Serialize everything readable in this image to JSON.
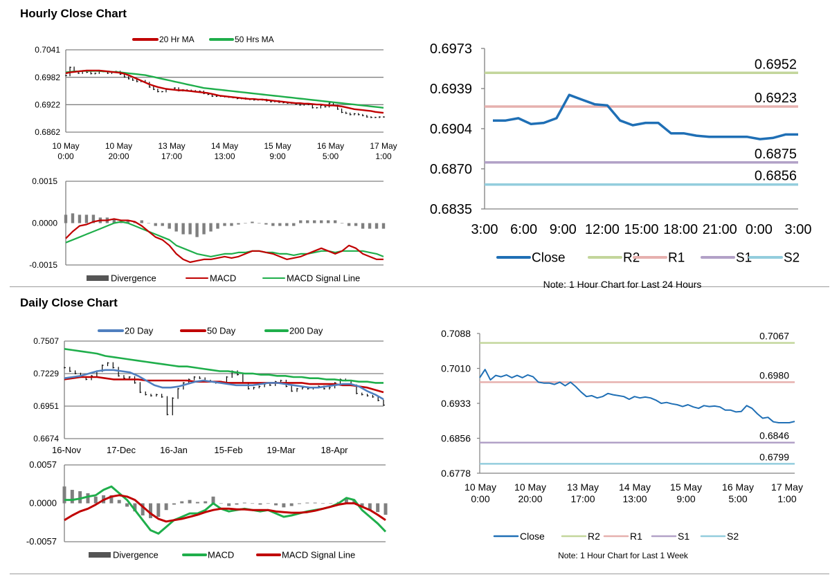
{
  "page": {
    "hourly_title": "Hourly Close Chart",
    "daily_title": "Daily Close Chart"
  },
  "colors": {
    "close": "#1f6fb5",
    "red": "#c00000",
    "green": "#1fae4b",
    "blue_ma": "#4f7fbf",
    "r2": "#c3d69b",
    "r1": "#e6b0ae",
    "s1": "#b2a1c7",
    "s2": "#93cddd",
    "bars": "#000000",
    "divergence": "#7f7f7f"
  },
  "chart_data": [
    {
      "id": "hourly_price",
      "type": "line",
      "legend": [
        "20 Hr MA",
        "50 Hrs MA"
      ],
      "yticks": [
        "0.7041",
        "0.6982",
        "0.6922",
        "0.6862"
      ],
      "ylim": [
        0.6862,
        0.7041
      ],
      "xticks": [
        [
          "10 May",
          "0:00"
        ],
        [
          "10 May",
          "20:00"
        ],
        [
          "13 May",
          "17:00"
        ],
        [
          "14 May",
          "13:00"
        ],
        [
          "15 May",
          "9:00"
        ],
        [
          "16 May",
          "5:00"
        ],
        [
          "17 May",
          "1:00"
        ]
      ],
      "close": [
        0.6985,
        0.7003,
        0.6993,
        0.699,
        0.6995,
        0.6992,
        0.6989,
        0.699,
        0.6994,
        0.6994,
        0.699,
        0.6992,
        0.6994,
        0.6988,
        0.6982,
        0.6978,
        0.6975,
        0.6972,
        0.6974,
        0.697,
        0.696,
        0.6955,
        0.695,
        0.695,
        0.6955,
        0.6955,
        0.6958,
        0.6952,
        0.6954,
        0.6953,
        0.6952,
        0.695,
        0.6951,
        0.6946,
        0.6944,
        0.694,
        0.694,
        0.694,
        0.6939,
        0.6938,
        0.6937,
        0.6935,
        0.6936,
        0.6934,
        0.6933,
        0.6932,
        0.6932,
        0.6933,
        0.693,
        0.6928,
        0.693,
        0.6927,
        0.6926,
        0.6925,
        0.6925,
        0.6923,
        0.6921,
        0.6923,
        0.6922,
        0.6915,
        0.6915,
        0.692,
        0.6917,
        0.6925,
        0.692,
        0.6912,
        0.6905,
        0.6903,
        0.69,
        0.6902,
        0.69,
        0.6898,
        0.6895,
        0.6894,
        0.6894,
        0.6895,
        0.6895
      ],
      "ma20": [
        0.699,
        0.6992,
        0.6993,
        0.6994,
        0.6995,
        0.6996,
        0.6996,
        0.6996,
        0.6996,
        0.6995,
        0.6994,
        0.6993,
        0.6992,
        0.6991,
        0.6989,
        0.6986,
        0.6982,
        0.6978,
        0.6974,
        0.697,
        0.6966,
        0.6963,
        0.696,
        0.6958,
        0.6956,
        0.6955,
        0.6954,
        0.6953,
        0.6953,
        0.6952,
        0.6951,
        0.695,
        0.6949,
        0.6948,
        0.6947,
        0.6945,
        0.6943,
        0.6941,
        0.694,
        0.6939,
        0.6938,
        0.6937,
        0.6936,
        0.6935,
        0.6934,
        0.6934,
        0.6933,
        0.6933,
        0.6932,
        0.6931,
        0.693,
        0.6929,
        0.6928,
        0.6927,
        0.6926,
        0.6925,
        0.6925,
        0.6924,
        0.6924,
        0.6923,
        0.6922,
        0.6922,
        0.6921,
        0.692,
        0.692,
        0.6919,
        0.6918,
        0.6916,
        0.6914,
        0.6912,
        0.6911,
        0.691,
        0.6909,
        0.6908,
        0.6906,
        0.6905,
        0.6904
      ],
      "ma50": [
        0.6992,
        0.6993,
        0.6994,
        0.6994,
        0.6995,
        0.6995,
        0.6995,
        0.6995,
        0.6995,
        0.6994,
        0.6994,
        0.6993,
        0.6993,
        0.6992,
        0.6991,
        0.699,
        0.6989,
        0.6988,
        0.6987,
        0.6986,
        0.6984,
        0.6982,
        0.698,
        0.6978,
        0.6976,
        0.6974,
        0.6972,
        0.697,
        0.6968,
        0.6966,
        0.6964,
        0.6962,
        0.696,
        0.6958,
        0.6957,
        0.6956,
        0.6955,
        0.6954,
        0.6953,
        0.6952,
        0.6951,
        0.695,
        0.6949,
        0.6948,
        0.6947,
        0.6946,
        0.6945,
        0.6944,
        0.6943,
        0.6942,
        0.6941,
        0.694,
        0.6939,
        0.6938,
        0.6937,
        0.6936,
        0.6935,
        0.6934,
        0.6933,
        0.6932,
        0.6931,
        0.693,
        0.6929,
        0.6928,
        0.6927,
        0.6926,
        0.6925,
        0.6924,
        0.6923,
        0.6922,
        0.6921,
        0.692,
        0.6919,
        0.6918,
        0.6917,
        0.6916,
        0.6915
      ]
    },
    {
      "id": "hourly_macd",
      "type": "line",
      "legend": [
        "Divergence",
        "MACD",
        "MACD Signal Line"
      ],
      "yticks": [
        "0.0015",
        "0.0000",
        "-0.0015"
      ],
      "ylim": [
        -0.0015,
        0.0015
      ],
      "macd": [
        -0.00055,
        -0.0003,
        -0.0001,
        -5e-05,
        5e-05,
        0.0001,
        0.0001,
        0.00015,
        0.0001,
        0.0001,
        5e-05,
        -0.0001,
        -0.0003,
        -0.0005,
        -0.0006,
        -0.0008,
        -0.0011,
        -0.0013,
        -0.0014,
        -0.00135,
        -0.0013,
        -0.0013,
        -0.00125,
        -0.0012,
        -0.00125,
        -0.0012,
        -0.0011,
        -0.001,
        -0.001,
        -0.00105,
        -0.0011,
        -0.0012,
        -0.0013,
        -0.00125,
        -0.0012,
        -0.0011,
        -0.001,
        -0.0009,
        -0.001,
        -0.0011,
        -0.001,
        -0.0008,
        -0.0009,
        -0.0011,
        -0.0012,
        -0.0013,
        -0.0013
      ],
      "signal": [
        -0.0007,
        -0.0006,
        -0.0005,
        -0.0004,
        -0.0003,
        -0.0002,
        -0.0001,
        0.0,
        5e-05,
        0.0,
        -0.0001,
        -0.0002,
        -0.0003,
        -0.0004,
        -0.0005,
        -0.0006,
        -0.0008,
        -0.0009,
        -0.001,
        -0.0011,
        -0.00115,
        -0.0012,
        -0.00115,
        -0.0011,
        -0.0011,
        -0.00105,
        -0.00105,
        -0.001,
        -0.001,
        -0.00105,
        -0.00105,
        -0.0011,
        -0.0011,
        -0.00115,
        -0.0011,
        -0.0011,
        -0.00105,
        -0.001,
        -0.001,
        -0.00105,
        -0.001,
        -0.001,
        -0.001,
        -0.001,
        -0.00105,
        -0.0011,
        -0.0012
      ],
      "divergence": [
        0.0003,
        0.00035,
        0.0003,
        0.0003,
        0.0003,
        0.0002,
        0.0002,
        0.00015,
        5e-05,
        0.0001,
        5e-05,
        0.0001,
        0.0,
        -0.0001,
        -0.0001,
        -0.0002,
        -0.0003,
        -0.0004,
        -0.0004,
        -0.0005,
        -0.0004,
        -0.0003,
        -0.0002,
        -0.0001,
        -0.0001,
        -5e-05,
        0.0,
        5e-05,
        0.0,
        -5e-05,
        -0.0001,
        -0.0001,
        -0.0001,
        -0.0001,
        0.0001,
        0.0001,
        0.0001,
        0.0001,
        0.0001,
        0.0001,
        0.0,
        -0.0001,
        -0.0001,
        -0.0002,
        -0.0002,
        -0.0002,
        -0.0002
      ]
    },
    {
      "id": "hourly_24h",
      "type": "line",
      "legend": [
        "Close",
        "R2",
        "R1",
        "S1",
        "S2"
      ],
      "yticks": [
        "0.6973",
        "0.6939",
        "0.6904",
        "0.6870",
        "0.6835"
      ],
      "ylim": [
        0.6835,
        0.6973
      ],
      "xticks": [
        "3:00",
        "6:00",
        "9:00",
        "12:00",
        "15:00",
        "18:00",
        "21:00",
        "0:00",
        "3:00"
      ],
      "close": [
        0.6911,
        0.6911,
        0.6913,
        0.6908,
        0.6909,
        0.6913,
        0.6933,
        0.6929,
        0.6925,
        0.6924,
        0.6911,
        0.6907,
        0.6909,
        0.6909,
        0.69,
        0.69,
        0.6898,
        0.6897,
        0.6897,
        0.6897,
        0.6897,
        0.6895,
        0.6896,
        0.6899,
        0.6899
      ],
      "levels": {
        "R2": "0.6952",
        "R1": "0.6923",
        "S1": "0.6875",
        "S2": "0.6856"
      },
      "note": "Note: 1 Hour Chart for Last 24 Hours"
    },
    {
      "id": "daily_price",
      "type": "line",
      "legend": [
        "20 Day",
        "50 Day",
        "200 Day"
      ],
      "yticks": [
        "0.7507",
        "0.7229",
        "0.6951",
        "0.6674"
      ],
      "ylim": [
        0.6674,
        0.7507
      ],
      "xticks": [
        "16-Nov",
        "17-Dec",
        "16-Jan",
        "15-Feb",
        "19-Mar",
        "18-Apr"
      ],
      "close": [
        0.728,
        0.725,
        0.723,
        0.72,
        0.718,
        0.721,
        0.725,
        0.73,
        0.732,
        0.728,
        0.721,
        0.719,
        0.72,
        0.715,
        0.707,
        0.705,
        0.704,
        0.705,
        0.703,
        0.688,
        0.702,
        0.71,
        0.715,
        0.718,
        0.72,
        0.719,
        0.717,
        0.716,
        0.715,
        0.716,
        0.72,
        0.725,
        0.722,
        0.715,
        0.71,
        0.711,
        0.712,
        0.714,
        0.713,
        0.716,
        0.717,
        0.712,
        0.708,
        0.71,
        0.711,
        0.71,
        0.711,
        0.712,
        0.71,
        0.711,
        0.715,
        0.718,
        0.717,
        0.713,
        0.706,
        0.705,
        0.704,
        0.703,
        0.7,
        0.696
      ],
      "ma20": [
        0.719,
        0.72,
        0.721,
        0.723,
        0.725,
        0.726,
        0.726,
        0.725,
        0.724,
        0.721,
        0.717,
        0.713,
        0.711,
        0.711,
        0.712,
        0.714,
        0.716,
        0.717,
        0.716,
        0.715,
        0.714,
        0.713,
        0.713,
        0.713,
        0.714,
        0.715,
        0.715,
        0.714,
        0.713,
        0.712,
        0.711,
        0.711,
        0.712,
        0.713,
        0.714,
        0.714,
        0.712,
        0.708,
        0.705,
        0.701
      ],
      "ma50": [
        0.718,
        0.719,
        0.72,
        0.72,
        0.72,
        0.719,
        0.718,
        0.718,
        0.718,
        0.718,
        0.717,
        0.717,
        0.717,
        0.717,
        0.717,
        0.717,
        0.716,
        0.716,
        0.716,
        0.716,
        0.715,
        0.715,
        0.715,
        0.715,
        0.715,
        0.715,
        0.715,
        0.715,
        0.715,
        0.715,
        0.714,
        0.714,
        0.714,
        0.714,
        0.713,
        0.713,
        0.712,
        0.711,
        0.709,
        0.707
      ],
      "ma200": [
        0.744,
        0.743,
        0.742,
        0.741,
        0.74,
        0.738,
        0.737,
        0.736,
        0.735,
        0.734,
        0.733,
        0.732,
        0.731,
        0.73,
        0.729,
        0.729,
        0.728,
        0.727,
        0.726,
        0.725,
        0.725,
        0.724,
        0.723,
        0.723,
        0.722,
        0.722,
        0.721,
        0.721,
        0.72,
        0.72,
        0.719,
        0.719,
        0.718,
        0.718,
        0.717,
        0.717,
        0.716,
        0.716,
        0.715,
        0.715
      ]
    },
    {
      "id": "daily_macd",
      "type": "line",
      "legend": [
        "Divergence",
        "MACD",
        "MACD Signal Line"
      ],
      "yticks": [
        "0.0057",
        "0.0000",
        "-0.0057"
      ],
      "ylim": [
        -0.0057,
        0.0057
      ],
      "macd": [
        0.0005,
        0.0005,
        0.0007,
        0.001,
        0.0012,
        0.002,
        0.0025,
        0.0015,
        0.0005,
        -0.001,
        -0.0025,
        -0.004,
        -0.0045,
        -0.0035,
        -0.0025,
        -0.002,
        -0.0015,
        -0.0015,
        -0.001,
        0.0,
        -0.0008,
        -0.0012,
        -0.001,
        -0.0008,
        -0.001,
        -0.0012,
        -0.001,
        -0.0015,
        -0.002,
        -0.0018,
        -0.0015,
        -0.0012,
        -0.001,
        -0.0008,
        -0.0005,
        0.0,
        0.0008,
        0.0005,
        -0.001,
        -0.002,
        -0.003,
        -0.0042
      ],
      "signal": [
        -0.0025,
        -0.0018,
        -0.0012,
        -0.0008,
        -0.0002,
        0.0005,
        0.001,
        0.0012,
        0.001,
        0.0005,
        -0.0005,
        -0.0015,
        -0.0023,
        -0.0027,
        -0.0025,
        -0.0023,
        -0.002,
        -0.0017,
        -0.0013,
        -0.001,
        -0.0008,
        -0.0008,
        -0.0009,
        -0.0009,
        -0.001,
        -0.001,
        -0.001,
        -0.0012,
        -0.0013,
        -0.0014,
        -0.0014,
        -0.0013,
        -0.0011,
        -0.0008,
        -0.0005,
        -0.0002,
        0.0,
        0.0,
        -0.0005,
        -0.001,
        -0.0017,
        -0.0025
      ],
      "divergence": [
        0.0025,
        0.002,
        0.0018,
        0.0015,
        0.001,
        0.0012,
        0.0012,
        0.0005,
        -0.0005,
        -0.0012,
        -0.0018,
        -0.0022,
        -0.002,
        -0.001,
        -0.0002,
        0.0003,
        0.0005,
        0.0002,
        0.0003,
        0.001,
        0.0,
        -0.0004,
        -0.0002,
        0.0001,
        0.0,
        -0.0002,
        0.0,
        -0.0003,
        -0.0006,
        -0.0004,
        -0.0001,
        0.0001,
        0.0001,
        0.0,
        0.0,
        0.0002,
        0.0008,
        0.0005,
        -0.0005,
        -0.001,
        -0.0013,
        -0.0017
      ]
    },
    {
      "id": "daily_week",
      "type": "line",
      "legend": [
        "Close",
        "R2",
        "R1",
        "S1",
        "S2"
      ],
      "yticks": [
        "0.7088",
        "0.7010",
        "0.6933",
        "0.6856",
        "0.6778"
      ],
      "ylim": [
        0.6778,
        0.7088
      ],
      "xticks": [
        [
          "10 May",
          "0:00"
        ],
        [
          "10 May",
          "20:00"
        ],
        [
          "13 May",
          "17:00"
        ],
        [
          "14 May",
          "13:00"
        ],
        [
          "15 May",
          "9:00"
        ],
        [
          "16 May",
          "5:00"
        ],
        [
          "17 May",
          "1:00"
        ]
      ],
      "close": [
        0.699,
        0.7008,
        0.6985,
        0.6995,
        0.6992,
        0.6996,
        0.699,
        0.6995,
        0.699,
        0.6996,
        0.6992,
        0.698,
        0.6978,
        0.6978,
        0.6975,
        0.698,
        0.6972,
        0.698,
        0.697,
        0.6958,
        0.6948,
        0.695,
        0.6945,
        0.6948,
        0.6955,
        0.6952,
        0.695,
        0.6948,
        0.6942,
        0.6948,
        0.6945,
        0.6947,
        0.6945,
        0.694,
        0.6933,
        0.6935,
        0.6932,
        0.693,
        0.6926,
        0.693,
        0.6925,
        0.6922,
        0.6928,
        0.6926,
        0.6927,
        0.6925,
        0.6918,
        0.6918,
        0.6914,
        0.6915,
        0.6928,
        0.6922,
        0.691,
        0.69,
        0.6902,
        0.6892,
        0.689,
        0.689,
        0.689,
        0.6893
      ],
      "levels": {
        "R2": "0.7067",
        "R1": "0.6980",
        "S1": "0.6846",
        "S2": "0.6799"
      },
      "note": "Note: 1 Hour Chart for Last 1 Week"
    }
  ]
}
